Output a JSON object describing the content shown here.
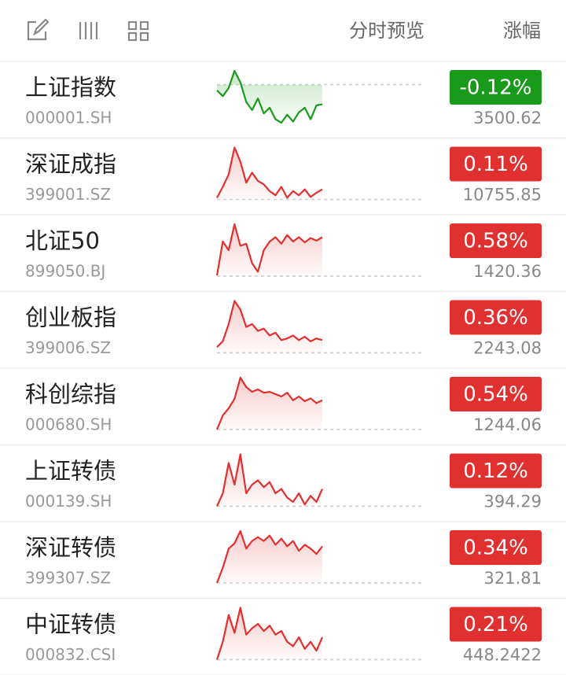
{
  "header": {
    "preview": "分时预览",
    "change": "涨幅"
  },
  "rows": [
    {
      "name": "上证指数",
      "code": "000001.SH",
      "change": "-0.12%",
      "price": "3500.62",
      "color": "#1a9a1a",
      "base": 0,
      "trend": [
        -0.05,
        -0.1,
        -0.03,
        0.12,
        0.02,
        -0.15,
        -0.22,
        -0.12,
        -0.25,
        -0.2,
        -0.3,
        -0.33,
        -0.26,
        -0.32,
        -0.24,
        -0.2,
        -0.3,
        -0.18,
        -0.17
      ]
    },
    {
      "name": "深证成指",
      "code": "399001.SZ",
      "change": "0.11%",
      "price": "10755.85",
      "color": "#e03030",
      "base": 0,
      "trend": [
        0.02,
        0.15,
        0.3,
        0.62,
        0.45,
        0.2,
        0.32,
        0.22,
        0.18,
        0.1,
        0.05,
        0.15,
        0.02,
        0.1,
        0.05,
        0.12,
        0.03,
        0.08,
        0.12
      ]
    },
    {
      "name": "北证50",
      "code": "899050.BJ",
      "change": "0.58%",
      "price": "1420.36",
      "color": "#e03030",
      "base": 0,
      "trend": [
        0.02,
        0.8,
        0.6,
        1.2,
        0.7,
        0.75,
        0.3,
        0.1,
        0.6,
        0.8,
        0.9,
        0.75,
        0.95,
        0.8,
        0.9,
        0.78,
        0.88,
        0.82,
        0.9
      ]
    },
    {
      "name": "创业板指",
      "code": "399006.SZ",
      "change": "0.36%",
      "price": "2243.08",
      "color": "#e03030",
      "base": 0,
      "trend": [
        0.1,
        0.2,
        0.5,
        0.9,
        0.75,
        0.45,
        0.5,
        0.38,
        0.42,
        0.3,
        0.35,
        0.22,
        0.25,
        0.3,
        0.22,
        0.28,
        0.2,
        0.25,
        0.22
      ]
    },
    {
      "name": "科创综指",
      "code": "000680.SH",
      "change": "0.54%",
      "price": "1244.06",
      "color": "#e03030",
      "base": 0,
      "trend": [
        0.0,
        0.3,
        0.45,
        0.65,
        1.1,
        0.9,
        0.8,
        0.85,
        0.78,
        0.8,
        0.75,
        0.7,
        0.78,
        0.62,
        0.7,
        0.6,
        0.66,
        0.56,
        0.62
      ]
    },
    {
      "name": "上证转债",
      "code": "000139.SH",
      "change": "0.12%",
      "price": "394.29",
      "color": "#e03030",
      "base": 0,
      "trend": [
        0.0,
        0.15,
        0.5,
        0.25,
        0.6,
        0.15,
        0.25,
        0.3,
        0.22,
        0.28,
        0.15,
        0.2,
        0.1,
        0.05,
        0.15,
        0.02,
        0.12,
        0.05,
        0.2
      ]
    },
    {
      "name": "深证转债",
      "code": "399307.SZ",
      "change": "0.34%",
      "price": "321.81",
      "color": "#e03030",
      "base": 0,
      "trend": [
        0.0,
        0.2,
        0.45,
        0.52,
        0.68,
        0.45,
        0.55,
        0.6,
        0.55,
        0.62,
        0.5,
        0.58,
        0.48,
        0.55,
        0.42,
        0.5,
        0.45,
        0.38,
        0.48
      ]
    },
    {
      "name": "中证转债",
      "code": "000832.CSI",
      "change": "0.21%",
      "price": "448.2422",
      "color": "#e03030",
      "base": 0,
      "trend": [
        0.0,
        0.2,
        0.5,
        0.3,
        0.58,
        0.28,
        0.35,
        0.4,
        0.32,
        0.38,
        0.28,
        0.32,
        0.2,
        0.15,
        0.25,
        0.12,
        0.2,
        0.1,
        0.25
      ]
    }
  ]
}
